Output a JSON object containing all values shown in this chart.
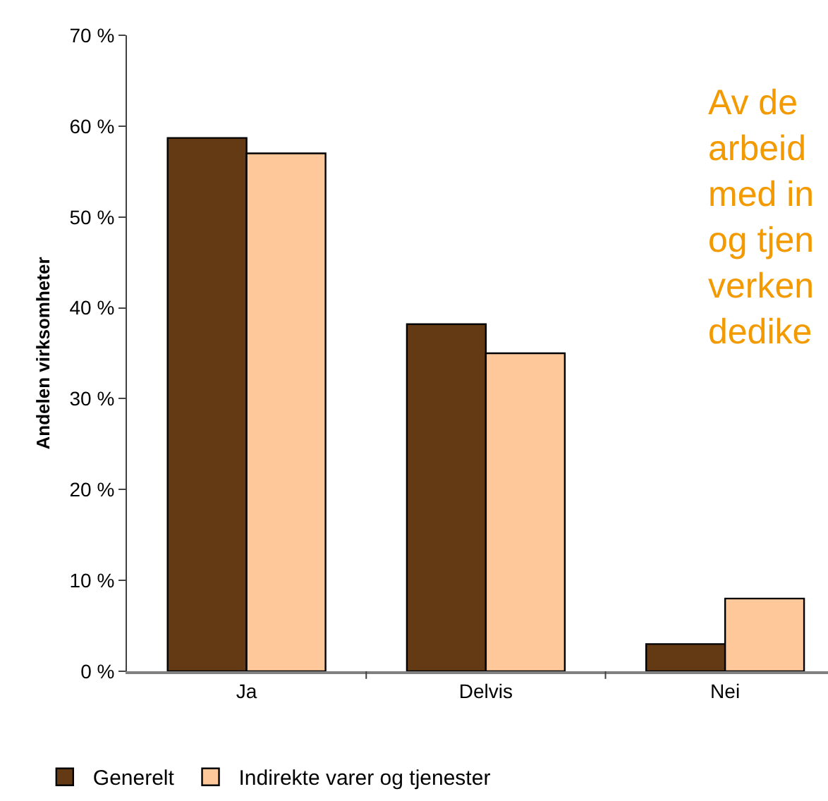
{
  "chart_data": {
    "type": "bar",
    "categories": [
      "Ja",
      "Delvis",
      "Nei"
    ],
    "ylabel": "Andelen virksomheter",
    "series": [
      {
        "name": "Generelt",
        "color": "#643a14",
        "values": [
          58.7,
          38.2,
          3.0
        ]
      },
      {
        "name": "Indirekte varer og tjenester",
        "color": "#ffc89a",
        "values": [
          57.0,
          35.0,
          8.0
        ]
      }
    ],
    "ylim": [
      0,
      70
    ],
    "yticks": [
      {
        "value": 0,
        "label": "0 %"
      },
      {
        "value": 10,
        "label": "10 %"
      },
      {
        "value": 20,
        "label": "20 %"
      },
      {
        "value": 30,
        "label": "30 %"
      },
      {
        "value": 40,
        "label": "40 %"
      },
      {
        "value": 50,
        "label": "50 %"
      },
      {
        "value": 60,
        "label": "60 %"
      },
      {
        "value": 70,
        "label": "70 %"
      }
    ],
    "annotations": [
      "Av de\narbeid\nmed in\nog tjen\nverken\ndedike"
    ],
    "legend": "bottom"
  }
}
